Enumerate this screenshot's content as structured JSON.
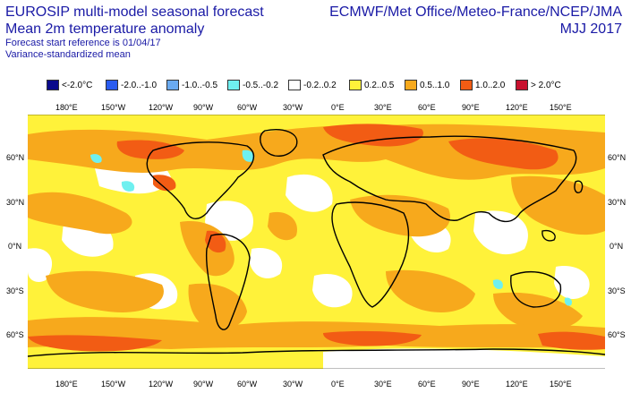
{
  "header": {
    "title_line1": "EUROSIP multi-model seasonal forecast",
    "title_line2": "Mean 2m temperature anomaly",
    "subtitle_line1": "Forecast start reference is 01/04/17",
    "subtitle_line2": "Variance-standardized mean",
    "agencies": "ECMWF/Met Office/Meteo-France/NCEP/JMA",
    "season": "MJJ 2017"
  },
  "legend": [
    {
      "label": "<-2.0°C",
      "color": "#0a0a8c"
    },
    {
      "label": "-2.0..-1.0",
      "color": "#2a5cf0"
    },
    {
      "label": "-1.0..-0.5",
      "color": "#6aaaf0"
    },
    {
      "label": "-0.5..-0.2",
      "color": "#6ff0f0"
    },
    {
      "label": "-0.2..0.2",
      "color": "#ffffff"
    },
    {
      "label": "0.2..0.5",
      "color": "#fff23a"
    },
    {
      "label": "0.5..1.0",
      "color": "#f7a91c"
    },
    {
      "label": "1.0..2.0",
      "color": "#f25c14"
    },
    {
      "label": "> 2.0°C",
      "color": "#c8102e"
    }
  ],
  "axes": {
    "top_lon": [
      "180°E",
      "150°W",
      "120°W",
      "90°W",
      "60°W",
      "30°W",
      "0°E",
      "30°E",
      "60°E",
      "90°E",
      "120°E",
      "150°E"
    ],
    "bottom_lon": [
      "180°E",
      "150°W",
      "120°W",
      "90°W",
      "60°W",
      "30°W",
      "0°E",
      "30°E",
      "60°E",
      "90°E",
      "120°E",
      "150°E"
    ],
    "left_lat": [
      "60°N",
      "30°N",
      "0°N",
      "30°S",
      "60°S"
    ],
    "right_lat": [
      "60°N",
      "30°N",
      "0°N",
      "30°S",
      "60°S"
    ]
  }
}
